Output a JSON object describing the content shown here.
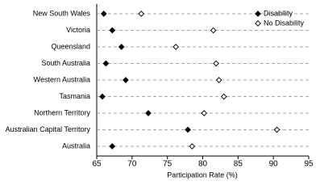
{
  "chart_data": {
    "type": "dot",
    "xlabel": "Participation Rate (%)",
    "categories": [
      "New South Wales",
      "Victoria",
      "Queensland",
      "South Australia",
      "Western Australia",
      "Tasmania",
      "Northern Territory",
      "Australian Capital Territory",
      "Australia"
    ],
    "series": [
      {
        "name": "Disability",
        "color": "#000000",
        "filled": true,
        "values": [
          66.0,
          67.2,
          68.5,
          66.3,
          69.1,
          65.8,
          72.3,
          77.9,
          67.2
        ]
      },
      {
        "name": "No Disability",
        "color": "#000000",
        "filled": false,
        "values": [
          71.3,
          81.5,
          76.2,
          81.9,
          82.3,
          83.0,
          80.2,
          90.5,
          78.5
        ]
      }
    ],
    "xlim": [
      65,
      95
    ],
    "xticks": [
      65,
      70,
      75,
      80,
      85,
      90,
      95
    ],
    "grid": true,
    "legend": "top-right"
  }
}
